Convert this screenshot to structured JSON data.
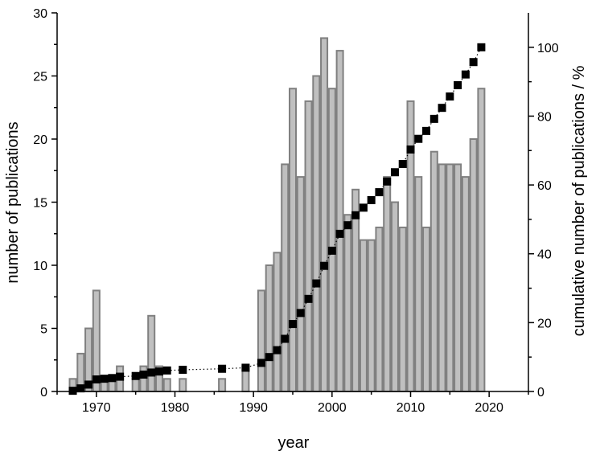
{
  "chart_data": {
    "type": "bar",
    "xlabel": "year",
    "ylabel": "number of publications",
    "y2label": "cumulative number of publications / %",
    "xlim": [
      1965,
      2025
    ],
    "ylim": [
      0,
      30
    ],
    "y2lim": [
      0,
      110
    ],
    "xticks": [
      1970,
      1980,
      1990,
      2000,
      2010,
      2020
    ],
    "yticks": [
      0,
      5,
      10,
      15,
      20,
      25,
      30
    ],
    "y2ticks": [
      0,
      20,
      40,
      60,
      80,
      100
    ],
    "colors": {
      "bar_fill": "#c0c0c0",
      "bar_edge": "#808080",
      "marker": "#000000"
    },
    "series": [
      {
        "type": "bar",
        "axis": "left",
        "x": [
          1967,
          1968,
          1969,
          1970,
          1971,
          1972,
          1973,
          1975,
          1976,
          1977,
          1978,
          1979,
          1981,
          1986,
          1989,
          1991,
          1992,
          1993,
          1994,
          1995,
          1996,
          1997,
          1998,
          1999,
          2000,
          2001,
          2002,
          2003,
          2004,
          2005,
          2006,
          2007,
          2008,
          2009,
          2010,
          2011,
          2012,
          2013,
          2014,
          2015,
          2016,
          2017,
          2018,
          2019
        ],
        "values": [
          1,
          3,
          5,
          8,
          1,
          1,
          2,
          1,
          2,
          6,
          2,
          1,
          1,
          1,
          2,
          8,
          10,
          11,
          18,
          24,
          17,
          23,
          25,
          28,
          24,
          27,
          14,
          16,
          12,
          12,
          13,
          17,
          15,
          13,
          23,
          17,
          13,
          19,
          18,
          18,
          18,
          17,
          20,
          24
        ]
      },
      {
        "type": "scatter",
        "axis": "right",
        "marker": "square",
        "line": "dotted",
        "x": [
          1967,
          1968,
          1969,
          1970,
          1971,
          1972,
          1973,
          1975,
          1976,
          1977,
          1978,
          1979,
          1981,
          1986,
          1989,
          1991,
          1992,
          1993,
          1994,
          1995,
          1996,
          1997,
          1998,
          1999,
          2000,
          2001,
          2002,
          2003,
          2004,
          2005,
          2006,
          2007,
          2008,
          2009,
          2010,
          2011,
          2012,
          2013,
          2014,
          2015,
          2016,
          2017,
          2018,
          2019
        ],
        "values": [
          0.2,
          0.9,
          2.0,
          3.5,
          3.7,
          3.9,
          4.3,
          4.5,
          4.9,
          5.5,
          5.8,
          6.1,
          6.3,
          6.6,
          6.9,
          8.3,
          10.0,
          12.0,
          15.3,
          19.6,
          22.8,
          26.9,
          31.4,
          36.5,
          40.9,
          45.8,
          48.3,
          51.2,
          53.4,
          55.6,
          57.9,
          61.0,
          63.7,
          66.1,
          70.3,
          73.4,
          75.7,
          79.2,
          82.4,
          85.7,
          89.0,
          92.1,
          95.7,
          100.0
        ]
      }
    ]
  }
}
